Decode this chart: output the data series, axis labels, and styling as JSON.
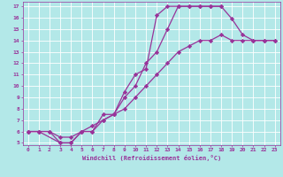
{
  "xlabel": "Windchill (Refroidissement éolien,°C)",
  "background_color": "#b3e8e8",
  "grid_color": "#ffffff",
  "line_color": "#993399",
  "marker": "D",
  "markersize": 2.2,
  "linewidth": 0.9,
  "xlim": [
    -0.5,
    23.5
  ],
  "ylim": [
    4.8,
    17.4
  ],
  "xticks": [
    0,
    1,
    2,
    3,
    4,
    5,
    6,
    7,
    8,
    9,
    10,
    11,
    12,
    13,
    14,
    15,
    16,
    17,
    18,
    19,
    20,
    21,
    22,
    23
  ],
  "yticks": [
    5,
    6,
    7,
    8,
    9,
    10,
    11,
    12,
    13,
    14,
    15,
    16,
    17
  ],
  "series": [
    {
      "x": [
        0,
        1,
        3,
        4,
        5,
        6,
        7,
        8,
        9,
        10,
        11,
        12,
        13,
        14,
        15,
        16,
        17,
        18
      ],
      "y": [
        6,
        6,
        5,
        5,
        6,
        6,
        7.5,
        7.5,
        9.5,
        11,
        11.5,
        16.2,
        17,
        17,
        17,
        17,
        17,
        17
      ]
    },
    {
      "x": [
        0,
        1,
        2,
        3,
        4,
        5,
        6,
        7,
        8,
        9,
        10,
        11,
        12,
        13,
        14,
        15,
        16,
        17,
        18,
        19,
        20,
        21,
        22,
        23
      ],
      "y": [
        6,
        6,
        6,
        5,
        5,
        6,
        6,
        7,
        7.5,
        9,
        10,
        12,
        13,
        15,
        17,
        17,
        17,
        17,
        17,
        15.9,
        14.5,
        14,
        14,
        14
      ]
    },
    {
      "x": [
        0,
        1,
        2,
        3,
        4,
        5,
        6,
        7,
        8,
        9,
        10,
        11,
        12,
        13,
        14,
        15,
        16,
        17,
        18,
        19,
        20,
        21,
        22,
        23
      ],
      "y": [
        6,
        6,
        6,
        5.5,
        5.5,
        6,
        6.5,
        7,
        7.5,
        8,
        9,
        10,
        11,
        12,
        13,
        13.5,
        14,
        14,
        14.5,
        14,
        14,
        14,
        14,
        14
      ]
    }
  ]
}
